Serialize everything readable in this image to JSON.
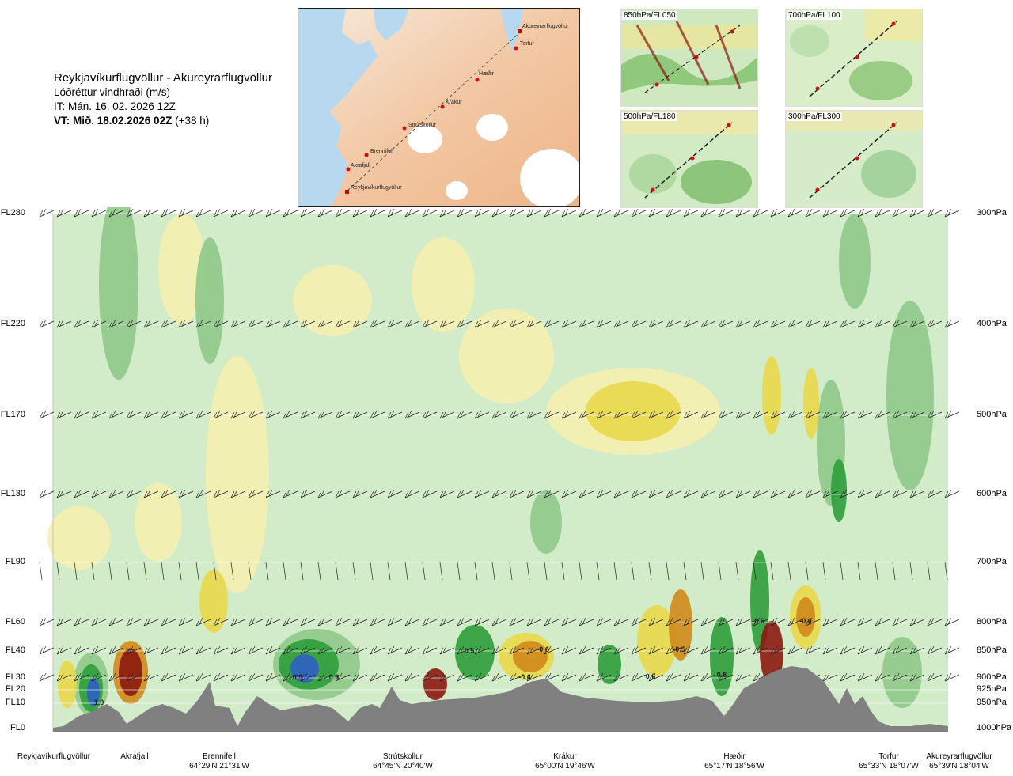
{
  "header": {
    "route": "Reykjavíkurflugvöllur - Akureyrarflugvöllur",
    "parameter": "Lóðréttur vindhraði (m/s)",
    "init_time": "IT: Mán. 16. 02. 2026 12Z",
    "valid_prefix": "VT: Mið. 18.02.2026 02Z",
    "valid_offset": "(+38 h)"
  },
  "overview_map": {
    "points": [
      {
        "name": "Akureyrarflugvöllur",
        "marker": "square"
      },
      {
        "name": "Torfur",
        "marker": "dot"
      },
      {
        "name": "Hæðir",
        "marker": "dot"
      },
      {
        "name": "Krákur",
        "marker": "dot"
      },
      {
        "name": "Strútskollur",
        "marker": "dot"
      },
      {
        "name": "Brennifell",
        "marker": "dot"
      },
      {
        "name": "Akrafjall",
        "marker": "dot"
      },
      {
        "name": "Reykjavíkurflugvöllur",
        "marker": "square"
      }
    ]
  },
  "level_maps": [
    {
      "label": "850hPa/FL050"
    },
    {
      "label": "700hPa/FL100"
    },
    {
      "label": "500hPa/FL180"
    },
    {
      "label": "300hPa/FL300"
    }
  ],
  "colors": {
    "terrain": "#808080",
    "updraft_light": "#d2ebc9",
    "updraft_mid": "#8fc98a",
    "updraft_strong": "#2e9e3a",
    "updraft_max": "#2f5fc4",
    "downdraft_light": "#f5efb0",
    "downdraft_mid": "#e8d84a",
    "downdraft_strong": "#d08a1a",
    "downdraft_max": "#8b1a10",
    "barb": "#222222"
  },
  "chart_data": {
    "type": "heatmap",
    "title": "Lóðréttur vindhraði (m/s)",
    "xlabel": "",
    "ylabel": "",
    "x_labels": [
      {
        "name": "Reykjavíkurflugvöllur",
        "coord": ""
      },
      {
        "name": "Akrafjall",
        "coord": ""
      },
      {
        "name": "Brennifell",
        "coord": "64°29'N 21°31'W"
      },
      {
        "name": "Strútskollur",
        "coord": "64°45'N 20°40'W"
      },
      {
        "name": "Krákur",
        "coord": "65°00'N 19°46'W"
      },
      {
        "name": "Hæðir",
        "coord": "65°17'N 18°56'W"
      },
      {
        "name": "Torfur",
        "coord": "65°33'N 18°07'W"
      },
      {
        "name": "Akureyrarflugvöllur",
        "coord": "65°39'N 18°04'W"
      }
    ],
    "flight_levels": [
      "FL280",
      "FL220",
      "FL170",
      "FL130",
      "FL90",
      "FL60",
      "FL40",
      "FL30",
      "FL20",
      "FL10",
      "FL0"
    ],
    "pressure_levels": [
      "300hPa",
      "400hPa",
      "500hPa",
      "600hPa",
      "700hPa",
      "800hPa",
      "850hPa",
      "900hPa",
      "925hPa",
      "950hPa",
      "1000hPa"
    ],
    "value_labels": [
      {
        "text": "1.0",
        "location": "Reykjavíkurflugvöllur",
        "level": "FL10"
      },
      {
        "text": "0.9",
        "location": "Brennifell-Strútskollur",
        "level": "FL30"
      },
      {
        "text": "0.6",
        "location": "Brennifell-Strútskollur",
        "level": "FL30"
      },
      {
        "text": "0.5",
        "location": "Strútskollur-Krákur",
        "level": "FL40"
      },
      {
        "text": "-0.6",
        "location": "Strútskollur-Krákur",
        "level": "FL40"
      },
      {
        "text": "-0.6",
        "location": "Strútskollur-Krákur",
        "level": "FL30"
      },
      {
        "text": "0.6",
        "location": "Krákur-Hæðir",
        "level": "FL30"
      },
      {
        "text": "-0.5",
        "location": "Krákur-Hæðir",
        "level": "FL40"
      },
      {
        "text": "0.6",
        "location": "Hæðir",
        "level": "FL30"
      },
      {
        "text": "-0.6",
        "location": "Hæðir",
        "level": "FL60"
      },
      {
        "text": "-0.6",
        "location": "Hæðir-Torfur",
        "level": "FL60"
      }
    ],
    "grid": true,
    "wind_barbs": true
  }
}
